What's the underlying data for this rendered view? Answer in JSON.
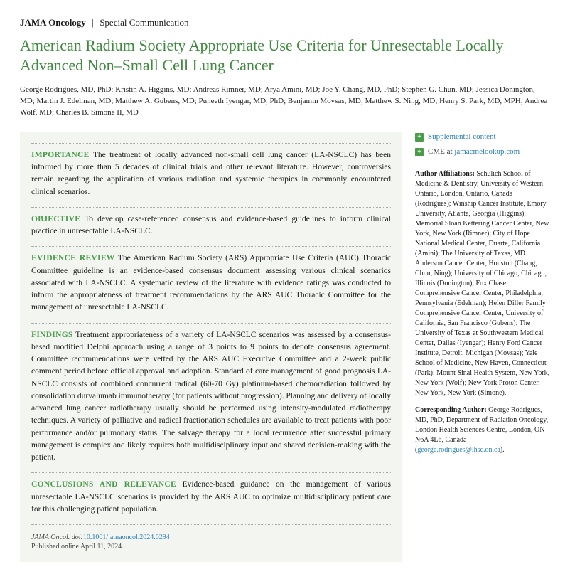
{
  "masthead": {
    "journal": "JAMA Oncology",
    "section": "Special Communication"
  },
  "title": "American Radium Society Appropriate Use Criteria for Unresectable Locally Advanced Non–Small Cell Lung Cancer",
  "authors": "George Rodrigues, MD, PhD; Kristin A. Higgins, MD; Andreas Rimner, MD; Arya Amini, MD; Joe Y. Chang, MD, PhD; Stephen G. Chun, MD; Jessica Donington, MD; Martin J. Edelman, MD; Matthew A. Gubens, MD; Puneeth Iyengar, MD, PhD; Benjamin Movsas, MD; Matthew S. Ning, MD; Henry S. Park, MD, MPH; Andrea Wolf, MD; Charles B. Simone II, MD",
  "abstract": {
    "importance": {
      "label": "IMPORTANCE",
      "text": " The treatment of locally advanced non-small cell lung cancer (LA-NSCLC) has been informed by more than 5 decades of clinical trials and other relevant literature. However, controversies remain regarding the application of various radiation and systemic therapies in commonly encountered clinical scenarios."
    },
    "objective": {
      "label": "OBJECTIVE",
      "text": " To develop case-referenced consensus and evidence-based guidelines to inform clinical practice in unresectable LA-NSCLC."
    },
    "evidence": {
      "label": "EVIDENCE REVIEW",
      "text": " The American Radium Society (ARS) Appropriate Use Criteria (AUC) Thoracic Committee guideline is an evidence-based consensus document assessing various clinical scenarios associated with LA-NSCLC. A systematic review of the literature with evidence ratings was conducted to inform the appropriateness of treatment recommendations by the ARS AUC Thoracic Committee for the management of unresectable LA-NSCLC."
    },
    "findings": {
      "label": "FINDINGS",
      "text": " Treatment appropriateness of a variety of LA-NSCLC scenarios was assessed by a consensus-based modified Delphi approach using a range of 3 points to 9 points to denote consensus agreement. Committee recommendations were vetted by the ARS AUC Executive Committee and a 2-week public comment period before official approval and adoption. Standard of care management of good prognosis LA-NSCLC consists of combined concurrent radical (60-70 Gy) platinum-based chemoradiation followed by consolidation durvalumab immunotherapy (for patients without progression). Planning and delivery of locally advanced lung cancer radiotherapy usually should be performed using intensity-modulated radiotherapy techniques. A variety of palliative and radical fractionation schedules are available to treat patients with poor performance and/or pulmonary status. The salvage therapy for a local recurrence after successful primary management is complex and likely requires both multidisciplinary input and shared decision-making with the patient."
    },
    "conclusions": {
      "label": "CONCLUSIONS AND RELEVANCE",
      "text": " Evidence-based guidance on the management of various unresectable LA-NSCLC scenarios is provided by the ARS AUC to optimize multidisciplinary patient care for this challenging patient population."
    }
  },
  "journal_line": {
    "abbrev": "JAMA Oncol.",
    "doi_label": "doi:",
    "doi": "10.1001/jamaoncol.2024.0294"
  },
  "pub_date": "Published online April 11, 2024.",
  "sidebar": {
    "supp": "Supplemental content",
    "cme_prefix": "CME at ",
    "cme_link": "jamacmelookup.com",
    "aff_label": "Author Affiliations:",
    "aff_text": " Schulich School of Medicine & Dentistry, University of Western Ontario, London, Ontario, Canada (Rodrigues); Winship Cancer Institute, Emory University, Atlanta, Georgia (Higgins); Memorial Sloan Kettering Cancer Center, New York, New York (Rimner); City of Hope National Medical Center, Duarte, California (Amini); The University of Texas, MD Anderson Cancer Center, Houston (Chang, Chun, Ning); University of Chicago, Chicago, Illinois (Donington); Fox Chase Comprehensive Cancer Center, Philadelphia, Pennsylvania (Edelman); Helen Diller Family Comprehensive Cancer Center, University of California, San Francisco (Gubens); The University of Texas at Southwestern Medical Center, Dallas (Iyengar); Henry Ford Cancer Institute, Detroit, Michigan (Movsas); Yale School of Medicine, New Haven, Connecticut (Park); Mount Sinai Health System, New York, New York (Wolf); New York Proton Center, New York, New York (Simone).",
    "corr_label": "Corresponding Author:",
    "corr_text": " George Rodrigues, MD, PhD, Department of Radiation Oncology, London Health Sciences Centre, London, ON N6A 4L6, Canada (",
    "corr_email": "george.rodrigues@lhsc.on.ca",
    "corr_close": ")."
  }
}
